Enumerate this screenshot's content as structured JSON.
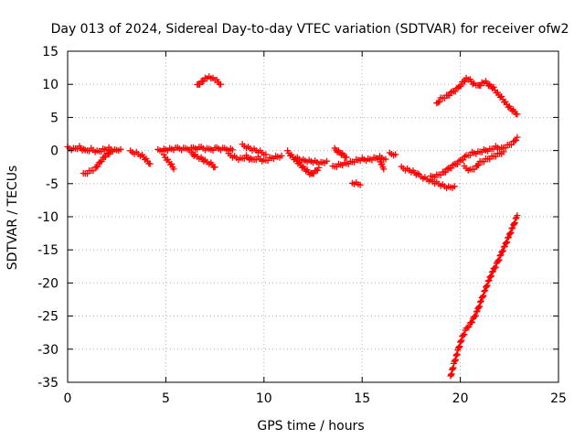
{
  "chart_data": {
    "type": "scatter",
    "title": "Day 013 of 2024, Sidereal Day-to-day VTEC variation (SDTVAR) for receiver ofw2",
    "xlabel": "GPS time / hours",
    "ylabel": "SDTVAR / TECUs",
    "xlim": [
      0,
      25
    ],
    "ylim": [
      -35,
      15
    ],
    "xticks": [
      0,
      5,
      10,
      15,
      20,
      25
    ],
    "yticks": [
      -35,
      -30,
      -25,
      -20,
      -15,
      -10,
      -5,
      0,
      5,
      10,
      15
    ],
    "grid": true,
    "marker": "+",
    "series_color": "#ff0000",
    "series": [
      {
        "name": "SDTVAR",
        "segments": [
          [
            [
              0.0,
              0.4
            ],
            [
              0.3,
              0.2
            ],
            [
              0.6,
              0.5
            ],
            [
              0.9,
              -0.1
            ],
            [
              1.2,
              0.2
            ],
            [
              1.5,
              -0.2
            ],
            [
              1.8,
              0.1
            ],
            [
              2.1,
              0.3
            ],
            [
              2.4,
              0.0
            ],
            [
              2.7,
              0.2
            ]
          ],
          [
            [
              0.8,
              -3.6
            ],
            [
              1.1,
              -3.2
            ],
            [
              1.4,
              -2.7
            ],
            [
              1.6,
              -2.0
            ],
            [
              1.8,
              -1.2
            ],
            [
              2.0,
              -0.6
            ],
            [
              2.2,
              -0.2
            ]
          ],
          [
            [
              3.2,
              -0.2
            ],
            [
              3.5,
              -0.4
            ],
            [
              3.8,
              -0.8
            ],
            [
              4.0,
              -1.4
            ],
            [
              4.2,
              -2.0
            ]
          ],
          [
            [
              4.6,
              0.0
            ],
            [
              4.9,
              0.1
            ],
            [
              5.2,
              0.2
            ],
            [
              5.6,
              0.3
            ],
            [
              6.0,
              0.2
            ],
            [
              6.4,
              0.3
            ],
            [
              6.8,
              0.4
            ],
            [
              7.2,
              0.1
            ],
            [
              7.6,
              0.3
            ],
            [
              8.0,
              0.2
            ],
            [
              8.4,
              0.1
            ]
          ],
          [
            [
              4.9,
              -0.8
            ],
            [
              5.1,
              -1.5
            ],
            [
              5.3,
              -2.2
            ],
            [
              5.4,
              -2.8
            ]
          ],
          [
            [
              6.3,
              -0.4
            ],
            [
              6.5,
              -0.8
            ],
            [
              6.8,
              -1.2
            ],
            [
              7.0,
              -1.6
            ],
            [
              7.3,
              -2.0
            ],
            [
              7.5,
              -2.5
            ]
          ],
          [
            [
              6.6,
              9.8
            ],
            [
              6.8,
              10.3
            ],
            [
              7.0,
              10.8
            ],
            [
              7.2,
              11.0
            ],
            [
              7.4,
              10.8
            ],
            [
              7.6,
              10.5
            ],
            [
              7.8,
              10.0
            ]
          ],
          [
            [
              8.2,
              -0.6
            ],
            [
              8.5,
              -1.0
            ],
            [
              8.8,
              -1.3
            ],
            [
              9.1,
              -0.9
            ],
            [
              9.4,
              -1.5
            ],
            [
              9.7,
              -1.1
            ],
            [
              10.0,
              -1.6
            ],
            [
              10.3,
              -1.2
            ],
            [
              10.6,
              -1.0
            ],
            [
              10.9,
              -0.8
            ]
          ],
          [
            [
              8.9,
              0.8
            ],
            [
              9.2,
              0.4
            ],
            [
              9.5,
              0.1
            ],
            [
              9.8,
              -0.2
            ],
            [
              10.1,
              -0.6
            ]
          ],
          [
            [
              11.2,
              -0.2
            ],
            [
              11.4,
              -0.8
            ],
            [
              11.6,
              -1.4
            ],
            [
              11.8,
              -2.0
            ],
            [
              12.0,
              -2.6
            ],
            [
              12.2,
              -3.1
            ],
            [
              12.4,
              -3.6
            ],
            [
              12.6,
              -3.2
            ],
            [
              12.8,
              -2.6
            ]
          ],
          [
            [
              11.7,
              -1.2
            ],
            [
              12.0,
              -1.5
            ],
            [
              12.3,
              -1.6
            ],
            [
              12.6,
              -1.7
            ],
            [
              12.9,
              -1.9
            ],
            [
              13.2,
              -1.6
            ]
          ],
          [
            [
              13.5,
              -2.5
            ],
            [
              13.8,
              -2.2
            ],
            [
              14.1,
              -2.0
            ],
            [
              14.4,
              -1.8
            ],
            [
              14.7,
              -1.5
            ],
            [
              15.0,
              -1.3
            ],
            [
              15.3,
              -1.4
            ],
            [
              15.6,
              -1.2
            ],
            [
              15.9,
              -1.0
            ],
            [
              16.2,
              -1.3
            ]
          ],
          [
            [
              13.6,
              0.2
            ],
            [
              13.8,
              -0.2
            ],
            [
              14.0,
              -0.6
            ],
            [
              14.2,
              -1.0
            ]
          ],
          [
            [
              14.5,
              -5.1
            ],
            [
              14.7,
              -5.0
            ],
            [
              14.9,
              -5.2
            ]
          ],
          [
            [
              15.9,
              -1.5
            ],
            [
              16.0,
              -2.2
            ],
            [
              16.1,
              -2.8
            ]
          ],
          [
            [
              16.4,
              -0.5
            ],
            [
              16.7,
              -0.6
            ]
          ],
          [
            [
              17.0,
              -2.6
            ],
            [
              17.3,
              -2.9
            ],
            [
              17.6,
              -3.2
            ],
            [
              17.9,
              -3.8
            ],
            [
              18.2,
              -4.2
            ],
            [
              18.5,
              -4.6
            ],
            [
              18.8,
              -4.9
            ],
            [
              19.1,
              -5.3
            ],
            [
              19.4,
              -5.6
            ],
            [
              19.7,
              -5.4
            ]
          ],
          [
            [
              18.5,
              -4.0
            ],
            [
              18.8,
              -3.8
            ],
            [
              19.1,
              -3.4
            ],
            [
              19.4,
              -2.8
            ],
            [
              19.7,
              -2.2
            ],
            [
              20.0,
              -1.6
            ],
            [
              20.3,
              -0.9
            ],
            [
              20.6,
              -0.4
            ],
            [
              20.9,
              -0.3
            ],
            [
              21.2,
              0.0
            ],
            [
              21.5,
              0.1
            ],
            [
              21.8,
              0.5
            ],
            [
              22.1,
              0.3
            ],
            [
              22.4,
              0.7
            ],
            [
              22.7,
              1.2
            ],
            [
              22.9,
              2.0
            ]
          ],
          [
            [
              20.2,
              -2.5
            ],
            [
              20.5,
              -3.0
            ],
            [
              20.8,
              -2.5
            ],
            [
              21.0,
              -1.8
            ],
            [
              21.3,
              -1.4
            ],
            [
              21.6,
              -1.0
            ],
            [
              21.9,
              -0.6
            ],
            [
              22.2,
              -0.2
            ]
          ],
          [
            [
              18.8,
              7.0
            ],
            [
              19.0,
              7.8
            ],
            [
              19.3,
              8.2
            ],
            [
              19.6,
              8.8
            ],
            [
              19.9,
              9.4
            ],
            [
              20.1,
              10.2
            ],
            [
              20.3,
              10.8
            ],
            [
              20.5,
              10.6
            ],
            [
              20.7,
              10.0
            ],
            [
              20.9,
              9.7
            ],
            [
              21.1,
              10.1
            ],
            [
              21.3,
              10.3
            ],
            [
              21.5,
              9.8
            ],
            [
              21.7,
              9.4
            ],
            [
              21.9,
              8.6
            ],
            [
              22.1,
              8.0
            ],
            [
              22.3,
              7.2
            ],
            [
              22.5,
              6.5
            ],
            [
              22.7,
              6.0
            ],
            [
              22.9,
              5.5
            ]
          ],
          [
            [
              19.5,
              -34.2
            ],
            [
              19.7,
              -32.0
            ],
            [
              19.9,
              -30.0
            ],
            [
              20.1,
              -28.2
            ],
            [
              20.3,
              -27.0
            ],
            [
              20.5,
              -26.2
            ],
            [
              20.7,
              -25.3
            ],
            [
              20.9,
              -24.0
            ],
            [
              21.1,
              -22.4
            ],
            [
              21.3,
              -20.8
            ],
            [
              21.5,
              -19.3
            ],
            [
              21.7,
              -18.0
            ],
            [
              21.9,
              -16.9
            ],
            [
              22.1,
              -15.5
            ],
            [
              22.3,
              -14.2
            ],
            [
              22.5,
              -12.8
            ],
            [
              22.7,
              -11.4
            ],
            [
              22.9,
              -9.8
            ]
          ]
        ]
      }
    ]
  }
}
